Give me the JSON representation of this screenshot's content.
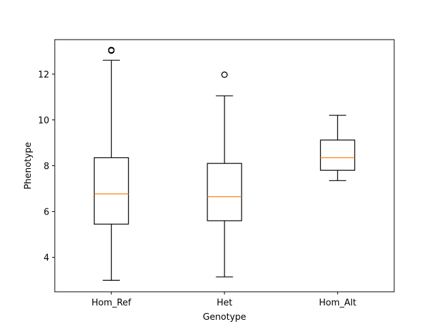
{
  "chart_data": {
    "type": "boxplot",
    "title": "",
    "xlabel": "Genotype",
    "ylabel": "Phenotype",
    "ylim": [
      2.5,
      13.5
    ],
    "yticks": [
      4,
      6,
      8,
      10,
      12
    ],
    "categories": [
      "Hom_Ref",
      "Het",
      "Hom_Alt"
    ],
    "boxes": [
      {
        "category": "Hom_Ref",
        "whisker_low": 3.0,
        "q1": 5.45,
        "median": 6.77,
        "q3": 8.35,
        "whisker_high": 12.6,
        "outliers": [
          13.02,
          13.05
        ]
      },
      {
        "category": "Het",
        "whisker_low": 3.15,
        "q1": 5.6,
        "median": 6.65,
        "q3": 8.1,
        "whisker_high": 11.05,
        "outliers": [
          11.97
        ]
      },
      {
        "category": "Hom_Alt",
        "whisker_low": 7.35,
        "q1": 7.8,
        "median": 8.35,
        "q3": 9.12,
        "whisker_high": 10.2,
        "outliers": []
      }
    ],
    "colors": {
      "box": "#000000",
      "median": "#ff7f0e",
      "background": "#ffffff"
    },
    "grid": false,
    "legend": "none"
  }
}
